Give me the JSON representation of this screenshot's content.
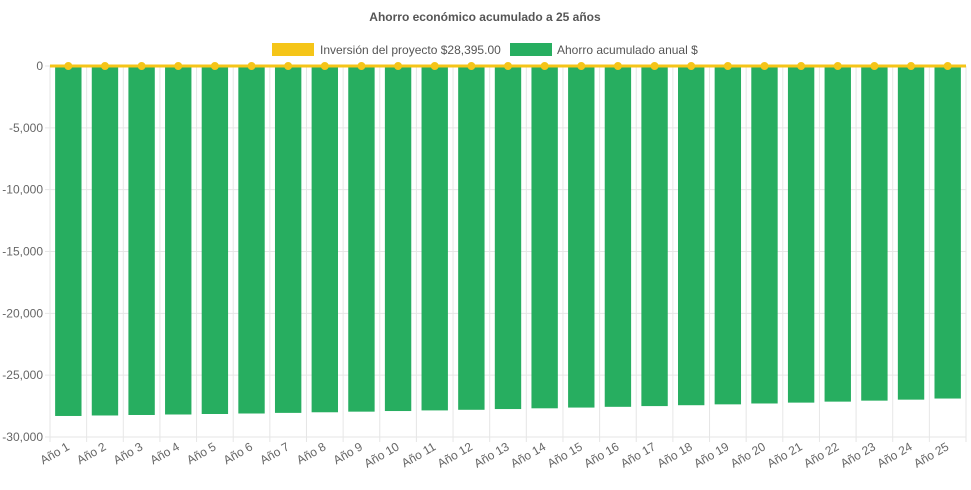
{
  "chart_data": {
    "type": "bar",
    "title": "Ahorro económico acumulado a 25 años",
    "xlabel": "",
    "ylabel": "",
    "ylim": [
      -30000,
      0
    ],
    "yticks": [
      0,
      -5000,
      -10000,
      -15000,
      -20000,
      -25000,
      -30000
    ],
    "ytick_labels": [
      "0",
      "-5,000",
      "-10,000",
      "-15,000",
      "-20,000",
      "-25,000",
      "-30,000"
    ],
    "grid": true,
    "legend_position": "top",
    "categories": [
      "Año 1",
      "Año 2",
      "Año 3",
      "Año 4",
      "Año 5",
      "Año 6",
      "Año 7",
      "Año 8",
      "Año 9",
      "Año 10",
      "Año 11",
      "Año 12",
      "Año 13",
      "Año 14",
      "Año 15",
      "Año 16",
      "Año 17",
      "Año 18",
      "Año 19",
      "Año 20",
      "Año 21",
      "Año 22",
      "Año 23",
      "Año 24",
      "Año 25"
    ],
    "series": [
      {
        "name": "Inversión del proyecto $28,395.00",
        "type": "line",
        "color": "#f5c518",
        "values": [
          0,
          0,
          0,
          0,
          0,
          0,
          0,
          0,
          0,
          0,
          0,
          0,
          0,
          0,
          0,
          0,
          0,
          0,
          0,
          0,
          0,
          0,
          0,
          0,
          0
        ]
      },
      {
        "name": "Ahorro acumulado anual $",
        "type": "bar",
        "color": "#27ae60",
        "values": [
          -28300,
          -28260,
          -28220,
          -28180,
          -28140,
          -28100,
          -28050,
          -28000,
          -27950,
          -27900,
          -27850,
          -27800,
          -27740,
          -27680,
          -27620,
          -27560,
          -27500,
          -27430,
          -27360,
          -27290,
          -27220,
          -27140,
          -27060,
          -26980,
          -26890
        ]
      }
    ]
  }
}
